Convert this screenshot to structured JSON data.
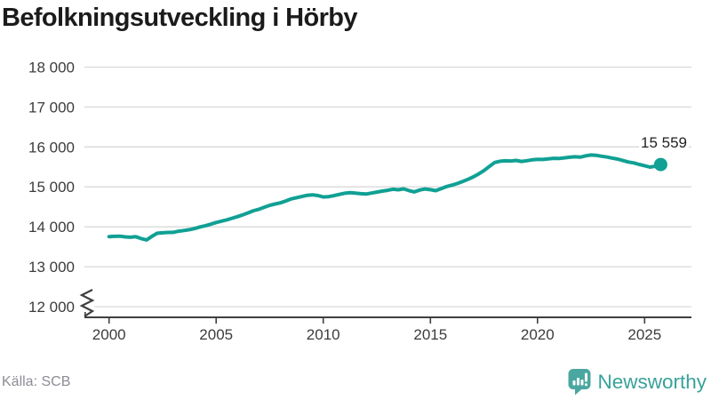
{
  "chart": {
    "title": "Befolkningsutveckling i Hörby",
    "endpoint_label": "15 559"
  },
  "footer": {
    "source": "Källa: SCB",
    "brand": "Newsworthy"
  },
  "colors": {
    "line": "#10a094",
    "endpoint_dot": "#10a094",
    "grid": "#d9d9d9",
    "axis": "#3f3f3f",
    "tick_label": "#3c3c3c",
    "title_text": "#1b1b1b",
    "endpoint_text": "#222222",
    "source_text": "#8c8c95",
    "brand_text": "#38a29a",
    "brand_icon": "#4aa7a0"
  },
  "chart_data": {
    "type": "line",
    "title": "Befolkningsutveckling i Hörby",
    "source": "Källa: SCB",
    "legend": "none",
    "grid": "horizontal",
    "axis_break_bottom_left": true,
    "xlabel": "",
    "ylabel": "",
    "x_ticks": [
      2000,
      2005,
      2010,
      2015,
      2020,
      2025
    ],
    "y_ticks": [
      {
        "value": 12000,
        "label": "12 000"
      },
      {
        "value": 13000,
        "label": "13 000"
      },
      {
        "value": 14000,
        "label": "14 000"
      },
      {
        "value": 15000,
        "label": "15 000"
      },
      {
        "value": 16000,
        "label": "16 000"
      },
      {
        "value": 17000,
        "label": "17 000"
      },
      {
        "value": 18000,
        "label": "18 000"
      }
    ],
    "ylim": [
      12000,
      18000
    ],
    "xlim": [
      1998.9,
      2027.2
    ],
    "x_start": 2000,
    "x_step": 0.25,
    "values": [
      13755,
      13760,
      13765,
      13748,
      13738,
      13752,
      13705,
      13672,
      13762,
      13840,
      13850,
      13858,
      13862,
      13890,
      13908,
      13928,
      13958,
      13996,
      14028,
      14066,
      14108,
      14142,
      14176,
      14215,
      14256,
      14302,
      14352,
      14404,
      14440,
      14492,
      14538,
      14572,
      14600,
      14648,
      14698,
      14730,
      14758,
      14790,
      14800,
      14784,
      14748,
      14756,
      14780,
      14812,
      14840,
      14854,
      14844,
      14830,
      14820,
      14845,
      14870,
      14895,
      14914,
      14940,
      14928,
      14950,
      14908,
      14874,
      14920,
      14948,
      14930,
      14906,
      14954,
      15008,
      15044,
      15084,
      15134,
      15188,
      15250,
      15324,
      15408,
      15510,
      15612,
      15642,
      15654,
      15648,
      15662,
      15638,
      15656,
      15678,
      15692,
      15686,
      15700,
      15715,
      15712,
      15726,
      15742,
      15754,
      15744,
      15778,
      15798,
      15790,
      15766,
      15748,
      15720,
      15696,
      15658,
      15622,
      15600,
      15562,
      15530,
      15496,
      15518,
      15559
    ],
    "last_point": {
      "x": 2025.75,
      "value": 15559,
      "label": "15 559"
    }
  }
}
